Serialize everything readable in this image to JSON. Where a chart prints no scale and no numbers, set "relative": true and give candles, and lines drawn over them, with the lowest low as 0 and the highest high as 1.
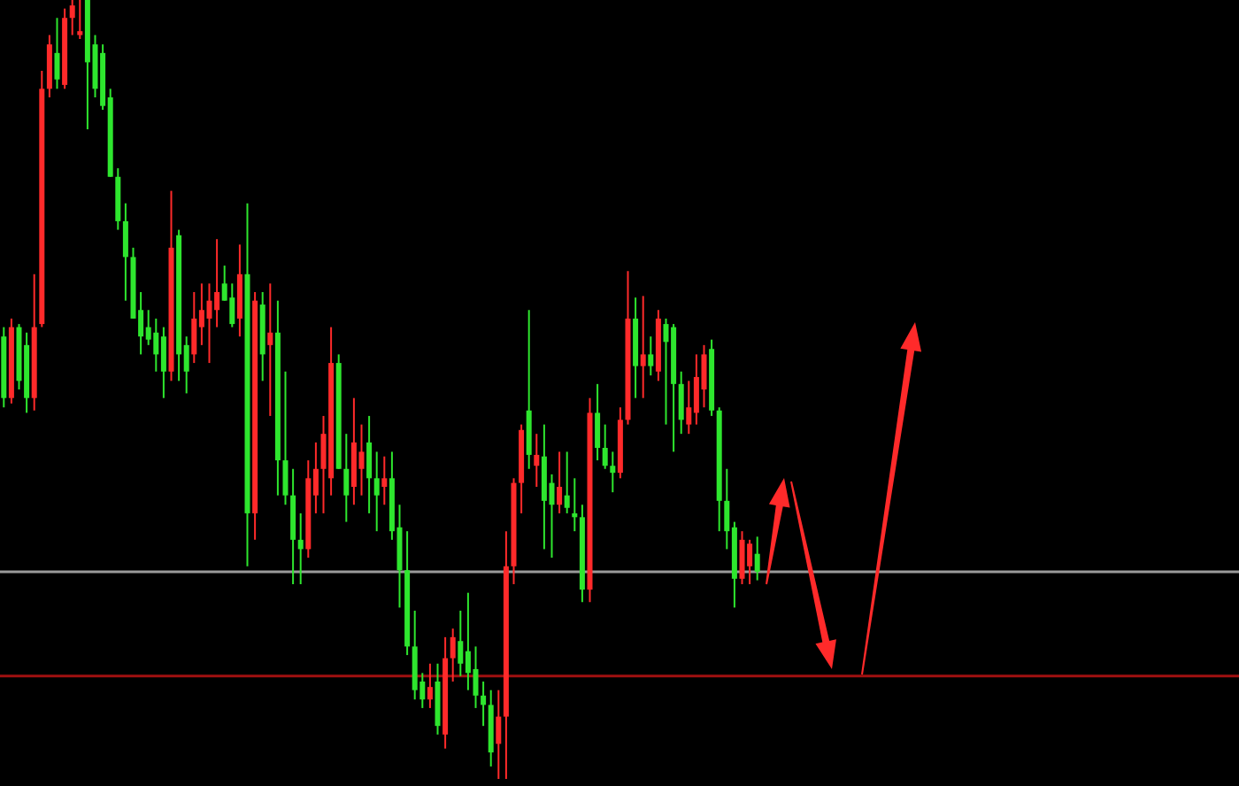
{
  "chart_data": {
    "type": "candlestick",
    "relative": true,
    "categories": [
      null,
      null,
      null,
      null,
      null,
      null,
      null,
      null,
      null,
      null,
      null,
      null,
      null,
      null,
      null,
      null,
      null,
      null,
      null,
      null,
      null,
      null,
      null,
      null,
      null,
      null,
      null,
      null,
      null,
      null,
      null,
      null,
      null,
      null,
      null,
      null,
      null,
      null,
      null,
      null,
      null,
      null,
      null,
      null,
      null,
      null,
      null,
      null,
      null,
      null,
      null,
      null,
      null,
      null,
      null,
      null,
      null,
      null,
      null,
      null,
      null,
      null,
      null,
      null,
      null,
      null,
      null,
      null,
      null,
      null,
      null,
      null,
      null,
      null,
      null,
      null,
      null,
      null,
      null,
      null,
      null,
      null,
      null,
      null,
      null,
      null,
      null,
      null,
      null,
      null,
      null,
      null,
      null,
      null,
      null,
      null,
      null,
      null,
      null,
      null
    ],
    "ohlc": [
      [
        0.568,
        0.58,
        0.477,
        0.489
      ],
      [
        0.489,
        0.591,
        0.482,
        0.58
      ],
      [
        0.58,
        0.584,
        0.5,
        0.511
      ],
      [
        0.557,
        0.573,
        0.47,
        0.489
      ],
      [
        0.489,
        0.648,
        0.473,
        0.58
      ],
      [
        0.584,
        0.909,
        0.58,
        0.886
      ],
      [
        0.886,
        0.955,
        0.875,
        0.943
      ],
      [
        0.932,
        0.977,
        0.886,
        0.898
      ],
      [
        0.891,
        0.989,
        0.886,
        0.977
      ],
      [
        0.977,
        1,
        0.955,
        0.993
      ],
      [
        0.955,
        1,
        0.95,
        0.96
      ],
      [
        1,
        1,
        0.834,
        0.92
      ],
      [
        0.943,
        0.955,
        0.875,
        0.886
      ],
      [
        0.932,
        0.943,
        0.859,
        0.864
      ],
      [
        0.875,
        0.886,
        0.773,
        0.773
      ],
      [
        0.773,
        0.784,
        0.705,
        0.716
      ],
      [
        0.716,
        0.739,
        0.614,
        0.67
      ],
      [
        0.67,
        0.682,
        0.591,
        0.591
      ],
      [
        0.602,
        0.625,
        0.545,
        0.568
      ],
      [
        0.58,
        0.602,
        0.557,
        0.564
      ],
      [
        0.573,
        0.591,
        0.523,
        0.545
      ],
      [
        0.568,
        0.58,
        0.489,
        0.523
      ],
      [
        0.523,
        0.755,
        0.511,
        0.682
      ],
      [
        0.698,
        0.705,
        0.511,
        0.545
      ],
      [
        0.557,
        0.568,
        0.495,
        0.523
      ],
      [
        0.545,
        0.625,
        0.534,
        0.591
      ],
      [
        0.58,
        0.636,
        0.557,
        0.602
      ],
      [
        0.591,
        0.636,
        0.534,
        0.614
      ],
      [
        0.602,
        0.693,
        0.58,
        0.625
      ],
      [
        0.636,
        0.659,
        0.614,
        0.614
      ],
      [
        0.618,
        0.636,
        0.58,
        0.584
      ],
      [
        0.591,
        0.686,
        0.568,
        0.648
      ],
      [
        0.648,
        0.739,
        0.273,
        0.341
      ],
      [
        0.341,
        0.625,
        0.307,
        0.614
      ],
      [
        0.609,
        0.625,
        0.511,
        0.545
      ],
      [
        0.557,
        0.636,
        0.466,
        0.573
      ],
      [
        0.573,
        0.614,
        0.364,
        0.409
      ],
      [
        0.409,
        0.523,
        0.352,
        0.364
      ],
      [
        0.364,
        0.398,
        0.25,
        0.307
      ],
      [
        0.307,
        0.341,
        0.25,
        0.295
      ],
      [
        0.295,
        0.409,
        0.284,
        0.386
      ],
      [
        0.364,
        0.432,
        0.341,
        0.398
      ],
      [
        0.398,
        0.466,
        0.341,
        0.443
      ],
      [
        0.386,
        0.58,
        0.364,
        0.534
      ],
      [
        0.534,
        0.545,
        0.398,
        0.398
      ],
      [
        0.398,
        0.443,
        0.33,
        0.364
      ],
      [
        0.375,
        0.489,
        0.352,
        0.432
      ],
      [
        0.398,
        0.455,
        0.364,
        0.42
      ],
      [
        0.432,
        0.466,
        0.341,
        0.386
      ],
      [
        0.386,
        0.42,
        0.318,
        0.364
      ],
      [
        0.375,
        0.414,
        0.352,
        0.386
      ],
      [
        0.386,
        0.42,
        0.307,
        0.318
      ],
      [
        0.323,
        0.352,
        0.22,
        0.268
      ],
      [
        0.268,
        0.318,
        0.159,
        0.17
      ],
      [
        0.17,
        0.216,
        0.102,
        0.114
      ],
      [
        0.125,
        0.136,
        0.091,
        0.102
      ],
      [
        0.102,
        0.148,
        0.091,
        0.118
      ],
      [
        0.125,
        0.148,
        0.057,
        0.068
      ],
      [
        0.057,
        0.182,
        0.039,
        0.155
      ],
      [
        0.155,
        0.193,
        0.125,
        0.182
      ],
      [
        0.177,
        0.216,
        0.132,
        0.148
      ],
      [
        0.164,
        0.239,
        0.114,
        0.136
      ],
      [
        0.141,
        0.17,
        0.091,
        0.107
      ],
      [
        0.107,
        0.125,
        0.068,
        0.095
      ],
      [
        0.095,
        0.114,
        0.016,
        0.034
      ],
      [
        0.045,
        0.114,
        0,
        0.08
      ],
      [
        0.08,
        0.318,
        0,
        0.273
      ],
      [
        0.273,
        0.386,
        0.25,
        0.38
      ],
      [
        0.38,
        0.455,
        0.341,
        0.448
      ],
      [
        0.473,
        0.602,
        0.398,
        0.416
      ],
      [
        0.402,
        0.443,
        0.375,
        0.416
      ],
      [
        0.414,
        0.455,
        0.295,
        0.357
      ],
      [
        0.38,
        0.391,
        0.284,
        0.352
      ],
      [
        0.352,
        0.42,
        0.341,
        0.375
      ],
      [
        0.364,
        0.42,
        0.341,
        0.348
      ],
      [
        0.341,
        0.386,
        0.318,
        0.336
      ],
      [
        0.336,
        0.352,
        0.227,
        0.243
      ],
      [
        0.243,
        0.489,
        0.227,
        0.47
      ],
      [
        0.47,
        0.507,
        0.409,
        0.425
      ],
      [
        0.425,
        0.455,
        0.398,
        0.402
      ],
      [
        0.402,
        0.42,
        0.368,
        0.393
      ],
      [
        0.393,
        0.477,
        0.386,
        0.461
      ],
      [
        0.461,
        0.652,
        0.455,
        0.591
      ],
      [
        0.591,
        0.618,
        0.489,
        0.53
      ],
      [
        0.53,
        0.62,
        0.489,
        0.545
      ],
      [
        0.545,
        0.568,
        0.518,
        0.53
      ],
      [
        0.523,
        0.602,
        0.511,
        0.591
      ],
      [
        0.584,
        0.591,
        0.455,
        0.561
      ],
      [
        0.58,
        0.584,
        0.42,
        0.507
      ],
      [
        0.507,
        0.523,
        0.443,
        0.461
      ],
      [
        0.455,
        0.511,
        0.443,
        0.477
      ],
      [
        0.47,
        0.545,
        0.455,
        0.516
      ],
      [
        0.5,
        0.557,
        0.477,
        0.545
      ],
      [
        0.552,
        0.564,
        0.466,
        0.473
      ],
      [
        0.473,
        0.477,
        0.318,
        0.357
      ],
      [
        0.357,
        0.398,
        0.295,
        0.318
      ],
      [
        0.323,
        0.33,
        0.22,
        0.257
      ],
      [
        0.257,
        0.318,
        0.25,
        0.307
      ],
      [
        0.273,
        0.307,
        0.25,
        0.302
      ],
      [
        0.289,
        0.311,
        0.255,
        0.266
      ]
    ],
    "colors": [
      "#2ee62e",
      "#ff2a2a",
      "#2ee62e",
      "#2ee62e",
      "#ff2a2a",
      "#ff2a2a",
      "#ff2a2a",
      "#2ee62e",
      "#ff2a2a",
      "#ff2a2a",
      "#ff2a2a",
      "#2ee62e",
      "#2ee62e",
      "#2ee62e",
      "#2ee62e",
      "#2ee62e",
      "#2ee62e",
      "#2ee62e",
      "#2ee62e",
      "#2ee62e",
      "#2ee62e",
      "#2ee62e",
      "#ff2a2a",
      "#2ee62e",
      "#2ee62e",
      "#ff2a2a",
      "#ff2a2a",
      "#ff2a2a",
      "#ff2a2a",
      "#2ee62e",
      "#2ee62e",
      "#ff2a2a",
      "#2ee62e",
      "#ff2a2a",
      "#2ee62e",
      "#ff2a2a",
      "#2ee62e",
      "#2ee62e",
      "#2ee62e",
      "#2ee62e",
      "#ff2a2a",
      "#ff2a2a",
      "#ff2a2a",
      "#ff2a2a",
      "#2ee62e",
      "#2ee62e",
      "#ff2a2a",
      "#ff2a2a",
      "#2ee62e",
      "#2ee62e",
      "#ff2a2a",
      "#2ee62e",
      "#2ee62e",
      "#2ee62e",
      "#2ee62e",
      "#2ee62e",
      "#ff2a2a",
      "#2ee62e",
      "#ff2a2a",
      "#ff2a2a",
      "#2ee62e",
      "#2ee62e",
      "#2ee62e",
      "#2ee62e",
      "#2ee62e",
      "#ff2a2a",
      "#ff2a2a",
      "#ff2a2a",
      "#ff2a2a",
      "#2ee62e",
      "#ff2a2a",
      "#2ee62e",
      "#2ee62e",
      "#ff2a2a",
      "#2ee62e",
      "#2ee62e",
      "#2ee62e",
      "#ff2a2a",
      "#2ee62e",
      "#2ee62e",
      "#2ee62e",
      "#ff2a2a",
      "#ff2a2a",
      "#2ee62e",
      "#ff2a2a",
      "#2ee62e",
      "#ff2a2a",
      "#2ee62e",
      "#2ee62e",
      "#2ee62e",
      "#ff2a2a",
      "#ff2a2a",
      "#ff2a2a",
      "#2ee62e",
      "#2ee62e",
      "#2ee62e",
      "#2ee62e",
      "#ff2a2a",
      "#ff2a2a",
      "#2ee62e"
    ],
    "ref_lines": [
      {
        "axis": "y",
        "value": 0.266,
        "color": "#9a9a9a"
      },
      {
        "axis": "y",
        "value": 0.132,
        "color": "#a01010"
      }
    ]
  }
}
